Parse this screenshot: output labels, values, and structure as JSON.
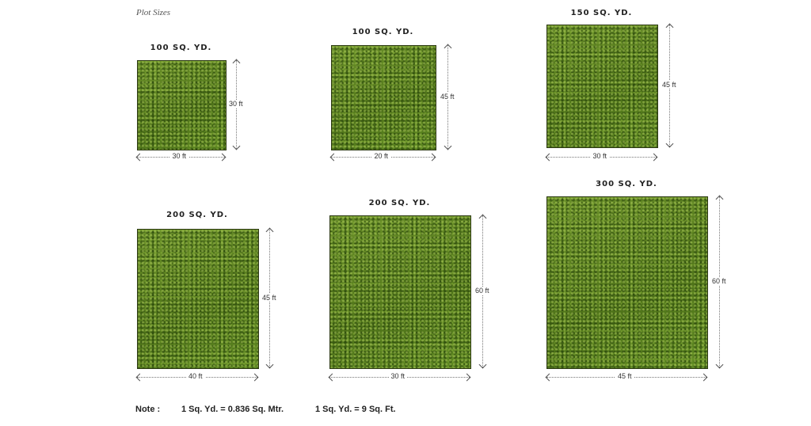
{
  "title": "Plot Sizes",
  "plots": [
    {
      "area": "100 SQ. YD.",
      "width": "30 ft",
      "height": "30 ft"
    },
    {
      "area": "100 SQ. YD.",
      "width": "20 ft",
      "height": "45 ft"
    },
    {
      "area": "150 SQ. YD.",
      "width": "30 ft",
      "height": "45 ft"
    },
    {
      "area": "200 SQ. YD.",
      "width": "40 ft",
      "height": "45 ft"
    },
    {
      "area": "200 SQ. YD.",
      "width": "30 ft",
      "height": "60 ft"
    },
    {
      "area": "300 SQ. YD.",
      "width": "45 ft",
      "height": "60 ft"
    }
  ],
  "note": {
    "label": "Note :",
    "conversion_1": "1 Sq. Yd. = 0.836 Sq. Mtr.",
    "conversion_2": "1 Sq. Yd. = 9 Sq. Ft."
  },
  "colors": {
    "grass": "#5a7f22"
  }
}
